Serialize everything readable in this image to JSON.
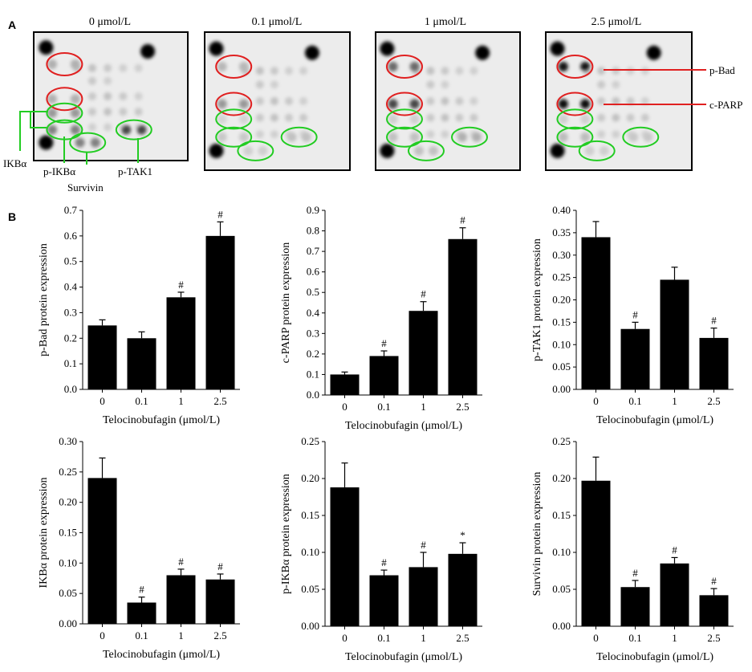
{
  "panel_a": {
    "letter": "A",
    "concentrations": [
      "0 μmol/L",
      "0.1 μmol/L",
      "1 μmol/L",
      "2.5 μmol/L"
    ],
    "labels": {
      "ikba": "IKBα",
      "p_ikba": "p-IKBα",
      "survivin": "Survivin",
      "p_tak1": "p-TAK1",
      "p_bad": "p-Bad",
      "c_parp": "c-PARP"
    },
    "colors": {
      "upregulated_marker": "#e02020",
      "downregulated_marker": "#22cc22",
      "callout_line_green": "#22cc22",
      "callout_line_red": "#e02020"
    }
  },
  "panel_b": {
    "letter": "B"
  },
  "chart_data": [
    {
      "type": "bar",
      "categories": [
        "0",
        "0.1",
        "1",
        "2.5"
      ],
      "values": [
        0.25,
        0.2,
        0.36,
        0.6
      ],
      "errors": [
        0.022,
        0.025,
        0.02,
        0.055
      ],
      "significance": [
        "",
        "",
        "#",
        "#"
      ],
      "xlabel": "Telocinobufagin (μmol/L)",
      "ylabel": "p-Bad protein expression",
      "ylim": [
        0,
        0.7
      ],
      "yticks": [
        "0.0",
        "0.1",
        "0.2",
        "0.3",
        "0.4",
        "0.5",
        "0.6",
        "0.7"
      ],
      "bar_color": "#000000"
    },
    {
      "type": "bar",
      "categories": [
        "0",
        "0.1",
        "1",
        "2.5"
      ],
      "values": [
        0.1,
        0.19,
        0.41,
        0.76
      ],
      "errors": [
        0.012,
        0.025,
        0.045,
        0.055
      ],
      "significance": [
        "",
        "#",
        "#",
        "#"
      ],
      "xlabel": "Telocinobufagin (μmol/L)",
      "ylabel": "c-PARP protein expression",
      "ylim": [
        0,
        0.9
      ],
      "yticks": [
        "0.0",
        "0.1",
        "0.2",
        "0.3",
        "0.4",
        "0.5",
        "0.6",
        "0.7",
        "0.8",
        "0.9"
      ],
      "bar_color": "#000000"
    },
    {
      "type": "bar",
      "categories": [
        "0",
        "0.1",
        "1",
        "2.5"
      ],
      "values": [
        0.34,
        0.135,
        0.245,
        0.115
      ],
      "errors": [
        0.035,
        0.015,
        0.028,
        0.022
      ],
      "significance": [
        "",
        "#",
        "",
        "#"
      ],
      "xlabel": "Telocinobufagin (μmol/L)",
      "ylabel": "p-TAK1 protein expression",
      "ylim": [
        0,
        0.4
      ],
      "yticks": [
        "0.00",
        "0.05",
        "0.10",
        "0.15",
        "0.20",
        "0.25",
        "0.30",
        "0.35",
        "0.40"
      ],
      "bar_color": "#000000"
    },
    {
      "type": "bar",
      "categories": [
        "0",
        "0.1",
        "1",
        "2.5"
      ],
      "values": [
        0.24,
        0.035,
        0.08,
        0.073
      ],
      "errors": [
        0.033,
        0.009,
        0.01,
        0.009
      ],
      "significance": [
        "",
        "#",
        "#",
        "#"
      ],
      "xlabel": "Telocinobufagin (μmol/L)",
      "ylabel": "IKBα protein expression",
      "ylim": [
        0,
        0.3
      ],
      "yticks": [
        "0.00",
        "0.05",
        "0.10",
        "0.15",
        "0.20",
        "0.25",
        "0.30"
      ],
      "bar_color": "#000000"
    },
    {
      "type": "bar",
      "categories": [
        "0",
        "0.1",
        "1",
        "2.5"
      ],
      "values": [
        0.188,
        0.069,
        0.08,
        0.098
      ],
      "errors": [
        0.033,
        0.007,
        0.02,
        0.015
      ],
      "significance": [
        "",
        "#",
        "#",
        "*"
      ],
      "xlabel": "Telocinobufagin (μmol/L)",
      "ylabel": "p-IKBα protein expression",
      "ylim": [
        0,
        0.25
      ],
      "yticks": [
        "0.00",
        "0.05",
        "0.10",
        "0.15",
        "0.20",
        "0.25"
      ],
      "bar_color": "#000000"
    },
    {
      "type": "bar",
      "categories": [
        "0",
        "0.1",
        "1",
        "2.5"
      ],
      "values": [
        0.197,
        0.053,
        0.085,
        0.042
      ],
      "errors": [
        0.032,
        0.009,
        0.008,
        0.009
      ],
      "significance": [
        "",
        "#",
        "#",
        "#"
      ],
      "xlabel": "Telocinobufagin (μmol/L)",
      "ylabel": "Survivin protein expression",
      "ylim": [
        0,
        0.25
      ],
      "yticks": [
        "0.00",
        "0.05",
        "0.10",
        "0.15",
        "0.20",
        "0.25"
      ],
      "bar_color": "#000000"
    }
  ]
}
